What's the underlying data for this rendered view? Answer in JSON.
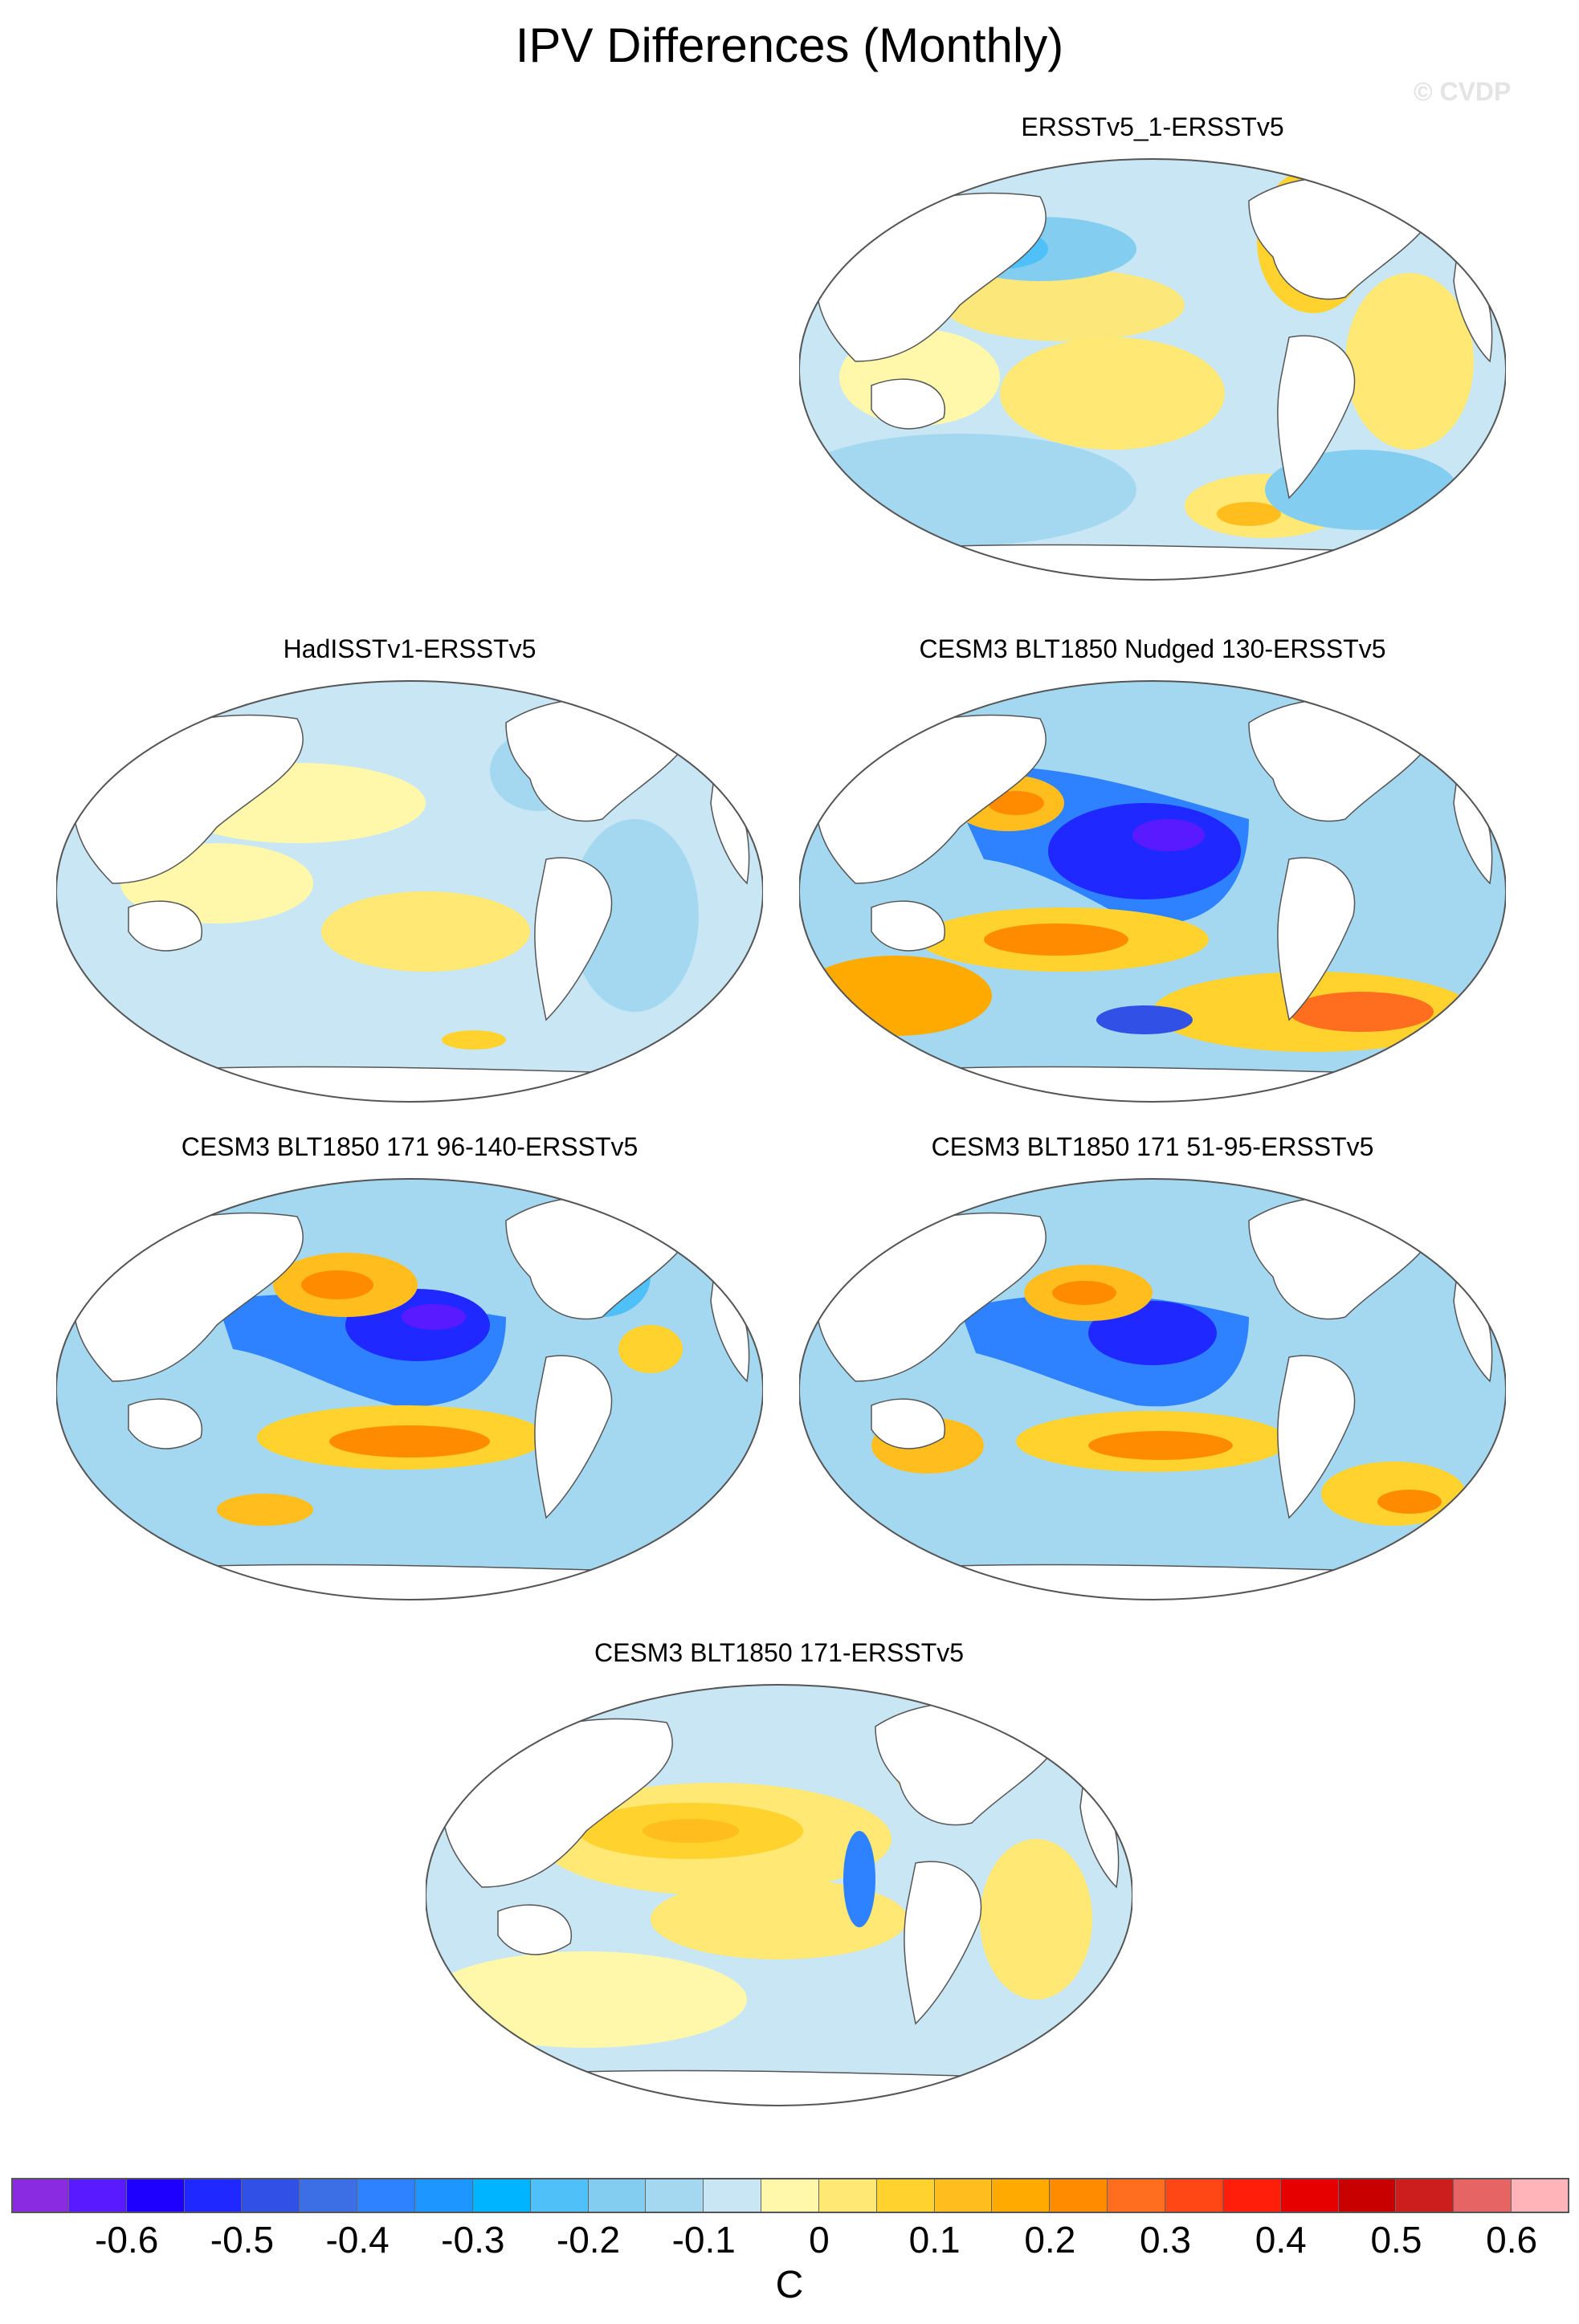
{
  "title": "IPV Differences (Monthly)",
  "watermark": "© CVDP",
  "units": "C",
  "colorbar": {
    "labels": [
      "-0.6",
      "-0.5",
      "-0.4",
      "-0.3",
      "-0.2",
      "-0.1",
      "0",
      "0.1",
      "0.2",
      "0.3",
      "0.4",
      "0.5",
      "0.6"
    ],
    "colors": [
      "#8a2be2",
      "#5a1aff",
      "#1e00ff",
      "#1e28ff",
      "#3050e6",
      "#3c6ee6",
      "#2f82ff",
      "#1e96ff",
      "#00b4ff",
      "#50c0f8",
      "#82cdf0",
      "#a4d8f0",
      "#c8e6f4",
      "#fff8aa",
      "#ffe873",
      "#ffd22e",
      "#ffbe1e",
      "#ffaa00",
      "#ff8c00",
      "#ff6e1e",
      "#ff4614",
      "#ff1e0a",
      "#e60000",
      "#c80000",
      "#cd1e1e",
      "#e66464",
      "#ffb4b9"
    ]
  },
  "panels": [
    {
      "title": "ERSSTv5_1-ERSSTv5",
      "pattern": "weak"
    },
    {
      "title": "HadISSTv1-ERSSTv5",
      "pattern": "weak"
    },
    {
      "title": "CESM3 BLT1850 Nudged 130-ERSSTv5",
      "pattern": "strong"
    },
    {
      "title": "CESM3 BLT1850 171 96-140-ERSSTv5",
      "pattern": "strong"
    },
    {
      "title": "CESM3 BLT1850 171 51-95-ERSSTv5",
      "pattern": "strong"
    },
    {
      "title": "CESM3 BLT1850 171-ERSSTv5",
      "pattern": "positive"
    }
  ]
}
